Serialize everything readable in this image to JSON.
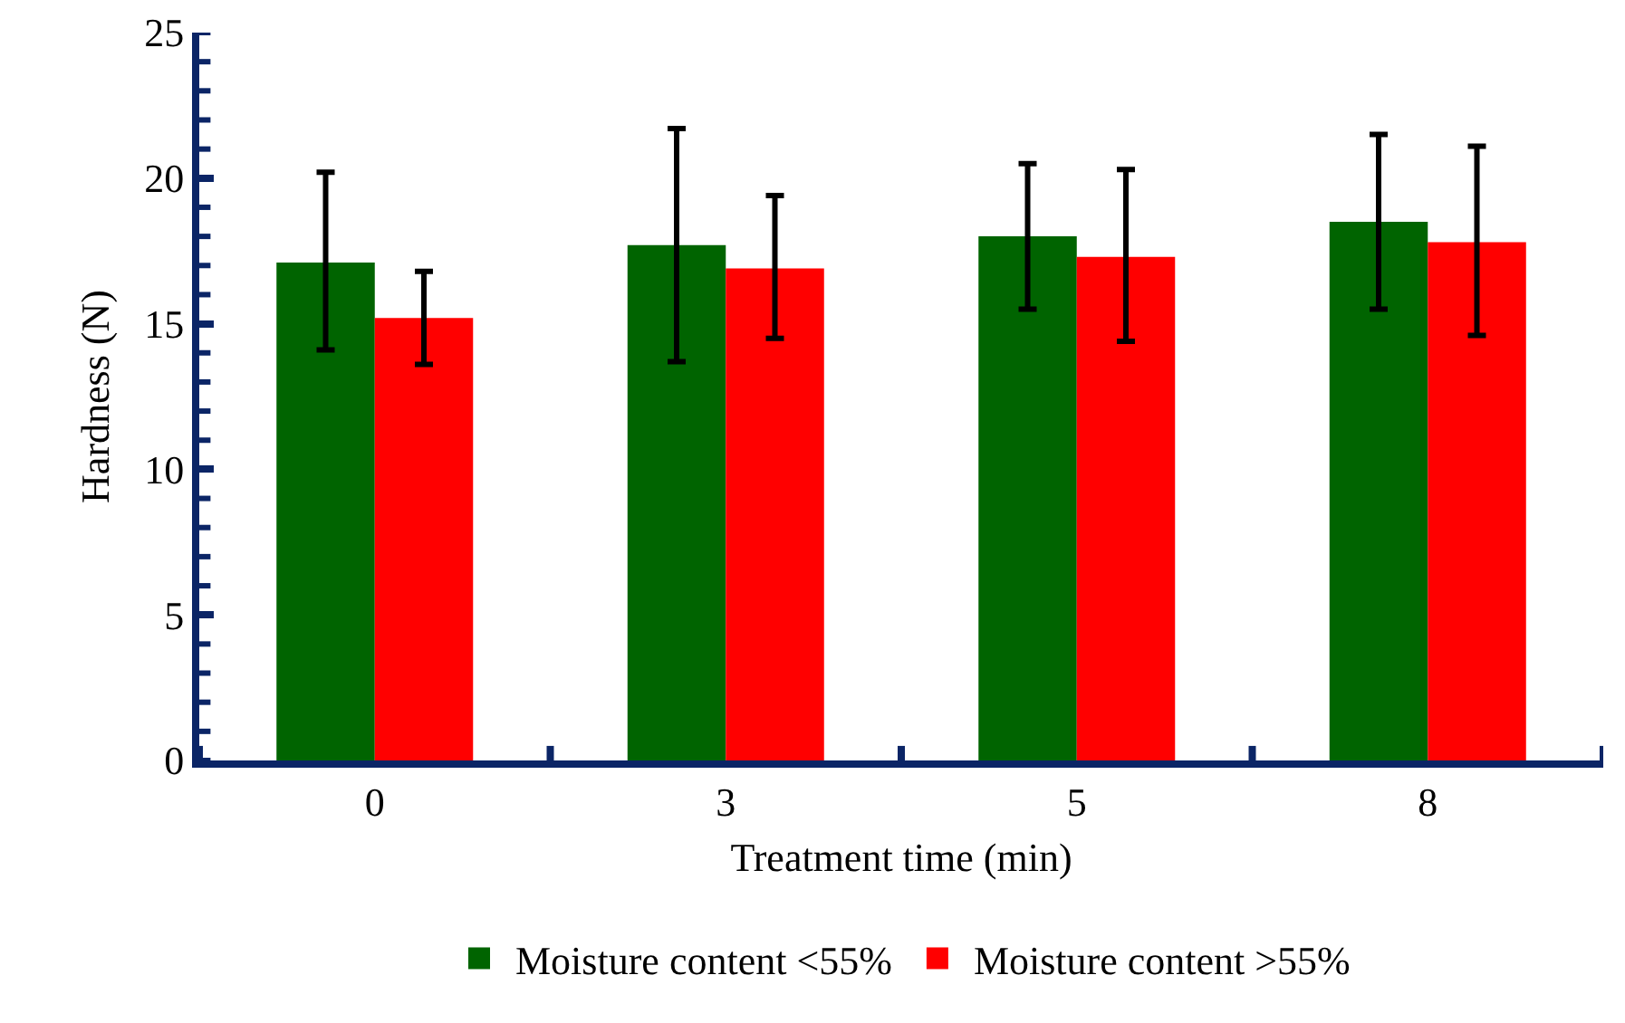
{
  "chart_data": {
    "type": "bar",
    "xlabel": "Treatment time (min)",
    "ylabel": "Hardness (N)",
    "categories": [
      "0",
      "3",
      "5",
      "8"
    ],
    "series": [
      {
        "name": "Moisture content <55%",
        "color": "#006400",
        "values": [
          17.1,
          17.7,
          18.0,
          18.5
        ],
        "errors": [
          [
            14.1,
            20.2
          ],
          [
            13.7,
            21.7
          ],
          [
            15.5,
            20.5
          ],
          [
            15.5,
            21.5
          ]
        ]
      },
      {
        "name": "Moisture content >55%",
        "color": "#ff0000",
        "values": [
          15.2,
          16.9,
          17.3,
          17.8
        ],
        "errors": [
          [
            13.6,
            16.8
          ],
          [
            14.5,
            19.4
          ],
          [
            14.4,
            20.3
          ],
          [
            14.6,
            21.1
          ]
        ]
      }
    ],
    "ylim": [
      0,
      25
    ],
    "yticks": [
      0,
      5,
      10,
      15,
      20,
      25
    ],
    "grid": false,
    "legend": "bottom"
  }
}
